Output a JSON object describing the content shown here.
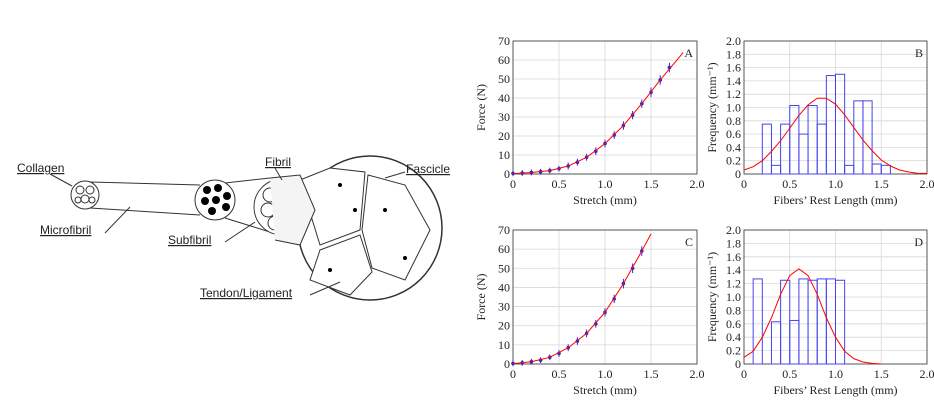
{
  "diagram": {
    "labels": [
      "Collagen",
      "Microfibril",
      "Subfibril",
      "Fibril",
      "Fascicle",
      "Tendon/Ligament"
    ]
  },
  "chart_data": [
    {
      "type": "scatter",
      "label": "A",
      "xlabel": "Stretch (mm)",
      "ylabel": "Force (N)",
      "grid": true,
      "xlim": [
        0,
        2
      ],
      "ylim": [
        0,
        70
      ],
      "xticks": [
        0,
        0.5,
        {
          "value": 1,
          "label": "1.0"
        },
        1.5,
        {
          "value": 2,
          "label": "2.0"
        }
      ],
      "yticks": [
        0,
        10,
        20,
        30,
        40,
        50,
        60,
        70
      ],
      "series": [
        {
          "color": "#2b2bd0",
          "x": [
            0,
            0.1,
            0.2,
            0.3,
            0.4,
            0.5,
            0.6,
            0.7,
            0.8,
            0.9,
            1.0,
            1.1,
            1.2,
            1.3,
            1.4,
            1.5,
            1.6,
            1.7
          ],
          "values": [
            0.3,
            0.5,
            0.8,
            1.2,
            1.8,
            2.8,
            4.2,
            6.2,
            8.8,
            12,
            16,
            20.5,
            25.5,
            31,
            37,
            43,
            49.5,
            56
          ],
          "errors": [
            1.5,
            1.5,
            1.5,
            1.5,
            1.5,
            1.5,
            1.8,
            1.8,
            1.8,
            2,
            2,
            2,
            2.2,
            2.2,
            2.2,
            2.5,
            2.5,
            2.5
          ]
        }
      ],
      "fit": {
        "color": "#ff0000",
        "x": [
          0,
          0.2,
          0.4,
          0.6,
          0.8,
          1.0,
          1.2,
          1.4,
          1.6,
          1.8,
          1.85
        ],
        "values": [
          0.2,
          0.8,
          1.8,
          4.2,
          8.8,
          16,
          25.5,
          37,
          49.5,
          61,
          64
        ]
      }
    },
    {
      "type": "histogram",
      "label": "B",
      "xlabel": "Fibers’ Rest Length (mm)",
      "ylabel": "Frequency (mm⁻¹)",
      "grid": true,
      "xlim": [
        0,
        2
      ],
      "ylim": [
        0,
        2
      ],
      "xticks": [
        0,
        0.5,
        {
          "value": 1,
          "label": "1.0"
        },
        1.5,
        {
          "value": 2,
          "label": "2.0"
        }
      ],
      "yticks": [
        0,
        0.2,
        0.4,
        0.6,
        0.8,
        {
          "value": 1,
          "label": "1.0"
        },
        1.2,
        1.4,
        1.6,
        1.8,
        {
          "value": 2,
          "label": "2.0"
        }
      ],
      "color": "#4444ee",
      "bins": [
        0.2,
        0.3,
        0.4,
        0.5,
        0.6,
        0.7,
        0.8,
        0.9,
        1.0,
        1.1,
        1.2,
        1.3,
        1.4,
        1.5,
        1.6
      ],
      "values": [
        0.75,
        0.13,
        0.75,
        1.03,
        0.6,
        1.03,
        0.75,
        1.48,
        1.5,
        0.13,
        1.1,
        1.1,
        0.15,
        0.13
      ],
      "fit": {
        "color": "#ff0000",
        "x": [
          0,
          0.1,
          0.2,
          0.3,
          0.4,
          0.5,
          0.6,
          0.7,
          0.8,
          0.9,
          1.0,
          1.1,
          1.2,
          1.3,
          1.4,
          1.5,
          1.6,
          1.7,
          1.8,
          1.9,
          2.0
        ],
        "values": [
          0.06,
          0.11,
          0.2,
          0.34,
          0.5,
          0.69,
          0.88,
          1.04,
          1.14,
          1.14,
          1.05,
          0.89,
          0.7,
          0.51,
          0.35,
          0.21,
          0.12,
          0.06,
          0.03,
          0.01,
          0.01
        ]
      }
    },
    {
      "type": "scatter",
      "label": "C",
      "xlabel": "Stretch (mm)",
      "ylabel": "Force (N)",
      "grid": true,
      "xlim": [
        0,
        2
      ],
      "ylim": [
        0,
        70
      ],
      "xticks": [
        0,
        0.5,
        {
          "value": 1,
          "label": "1.0"
        },
        1.5,
        {
          "value": 2,
          "label": "2.0"
        }
      ],
      "yticks": [
        0,
        10,
        20,
        30,
        40,
        50,
        60,
        70
      ],
      "series": [
        {
          "color": "#2b2bd0",
          "x": [
            0,
            0.1,
            0.2,
            0.3,
            0.4,
            0.5,
            0.6,
            0.7,
            0.8,
            0.9,
            1.0,
            1.1,
            1.2,
            1.3,
            1.4
          ],
          "values": [
            0.3,
            0.6,
            1.2,
            2,
            3.5,
            5.5,
            8.5,
            12,
            16,
            21,
            27,
            34,
            42,
            50,
            59
          ],
          "errors": [
            1.5,
            1.5,
            1.5,
            1.5,
            1.5,
            1.8,
            1.8,
            2,
            2,
            2,
            2.2,
            2.2,
            2.5,
            2.5,
            2.5
          ]
        }
      ],
      "fit": {
        "color": "#ff0000",
        "x": [
          0,
          0.2,
          0.4,
          0.6,
          0.8,
          1.0,
          1.2,
          1.4,
          1.5
        ],
        "values": [
          0.2,
          1.2,
          3.5,
          8.5,
          16,
          27,
          42,
          59,
          68
        ]
      }
    },
    {
      "type": "histogram",
      "label": "D",
      "xlabel": "Fibers’ Rest Length (mm)",
      "ylabel": "Frequency (mm⁻¹)",
      "grid": true,
      "xlim": [
        0,
        2
      ],
      "ylim": [
        0,
        2
      ],
      "xticks": [
        0,
        0.5,
        {
          "value": 1,
          "label": "1.0"
        },
        1.5,
        {
          "value": 2,
          "label": "2.0"
        }
      ],
      "yticks": [
        0,
        0.2,
        0.4,
        0.6,
        0.8,
        {
          "value": 1,
          "label": "1.0"
        },
        1.2,
        1.4,
        1.6,
        1.8,
        {
          "value": 2,
          "label": "2.0"
        }
      ],
      "color": "#4444ee",
      "bins": [
        0.1,
        0.2,
        0.3,
        0.4,
        0.5,
        0.6,
        0.7,
        0.8,
        0.9,
        1.0,
        1.1
      ],
      "values": [
        1.27,
        0,
        0.63,
        1.25,
        0.65,
        1.27,
        1.25,
        1.27,
        1.27,
        1.25
      ],
      "fit": {
        "color": "#ff0000",
        "x": [
          0,
          0.1,
          0.2,
          0.3,
          0.4,
          0.5,
          0.6,
          0.7,
          0.8,
          0.9,
          1.0,
          1.1,
          1.2,
          1.3,
          1.4,
          1.5
        ],
        "values": [
          0.1,
          0.19,
          0.4,
          0.69,
          1.04,
          1.32,
          1.42,
          1.32,
          1.04,
          0.69,
          0.4,
          0.19,
          0.08,
          0.03,
          0.01,
          0
        ]
      }
    }
  ]
}
